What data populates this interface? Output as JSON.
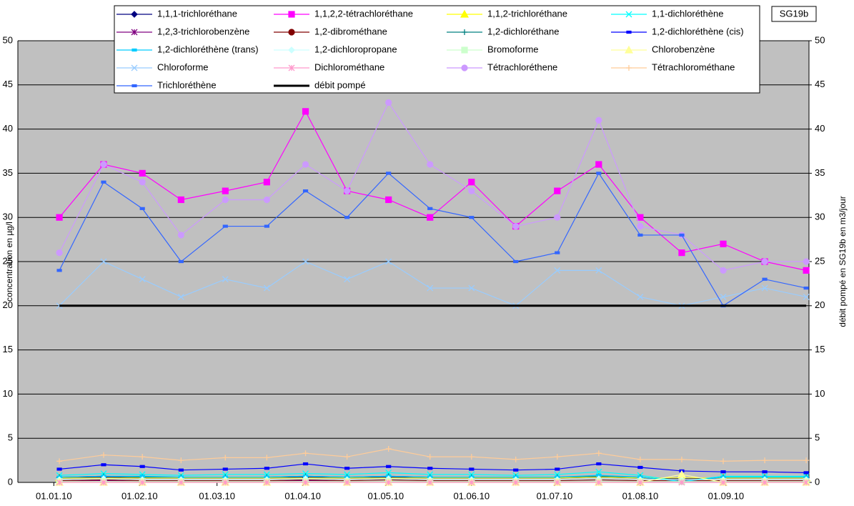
{
  "chart_data": {
    "type": "line",
    "title": "SG19b",
    "y_label": "concentration en µg/l",
    "y2_label": "débit pompé en SG19b en m3/jour",
    "x": [
      "03.01.10",
      "19.01.10",
      "02.02.10",
      "16.02.10",
      "04.03.10",
      "19.03.10",
      "02.04.10",
      "17.04.10",
      "02.05.10",
      "17.05.10",
      "01.06.10",
      "17.06.10",
      "02.07.10",
      "17.07.10",
      "01.08.10",
      "16.08.10",
      "31.08.10",
      "15.09.10",
      "30.09.10"
    ],
    "xlim": [
      "19.12.09",
      "01.10.10"
    ],
    "xticks": [
      "01.01.10",
      "01.02.10",
      "01.03.10",
      "01.04.10",
      "01.05.10",
      "01.06.10",
      "01.07.10",
      "01.08.10",
      "01.09.10"
    ],
    "ylim": [
      0,
      50
    ],
    "yticks": [
      0,
      5,
      10,
      15,
      20,
      25,
      30,
      35,
      40,
      45,
      50
    ],
    "y2lim": [
      0,
      50
    ],
    "y2ticks": [
      0,
      5,
      10,
      15,
      20,
      25,
      30,
      35,
      40,
      45,
      50
    ],
    "grid": true,
    "background": "#c0c0c0",
    "series": [
      {
        "name": "1,1,1-trichloréthane",
        "color": "#000080",
        "marker": "diamond",
        "values": [
          0.5,
          0.6,
          0.5,
          0.5,
          0.5,
          0.5,
          0.6,
          0.5,
          0.6,
          0.5,
          0.5,
          0.5,
          0.5,
          0.6,
          0.5,
          0.4,
          0.5,
          0.5,
          0.5
        ]
      },
      {
        "name": "1,1,2,2-tétrachloréthane",
        "color": "#ff00ff",
        "marker": "square",
        "values": [
          30,
          36,
          35,
          32,
          33,
          34,
          42,
          33,
          32,
          30,
          34,
          29,
          33,
          36,
          30,
          26,
          27,
          25,
          24
        ]
      },
      {
        "name": "1,1,2-trichloréthane",
        "color": "#ffff00",
        "marker": "triangle",
        "values": [
          0.5,
          0.5,
          0.5,
          0.5,
          0.5,
          0.5,
          0.5,
          0.5,
          0.5,
          0.5,
          0.5,
          0.5,
          0.5,
          0.6,
          0.5,
          0.5,
          0.5,
          0.5,
          0.5
        ]
      },
      {
        "name": "1,1-dichloréthène",
        "color": "#00ffff",
        "marker": "x",
        "values": [
          0.8,
          1.0,
          0.9,
          0.8,
          0.9,
          0.9,
          1.0,
          0.9,
          1.1,
          0.9,
          0.9,
          0.8,
          0.9,
          1.2,
          0.8,
          0.1,
          0.7,
          0.7,
          0.7
        ]
      },
      {
        "name": "1,2,3-trichlorobenzène",
        "color": "#800080",
        "marker": "star",
        "values": [
          0.1,
          0.2,
          0.1,
          0.1,
          0.1,
          0.1,
          0.2,
          0.1,
          0.1,
          0.1,
          0.1,
          0.1,
          0.1,
          0.1,
          0.1,
          0.1,
          0.1,
          0.1,
          0.1
        ]
      },
      {
        "name": "1,2-dibrométhane",
        "color": "#800000",
        "marker": "circle",
        "values": [
          0.2,
          0.3,
          0.2,
          0.2,
          0.2,
          0.2,
          0.3,
          0.2,
          0.3,
          0.2,
          0.2,
          0.2,
          0.2,
          0.3,
          0.2,
          0.2,
          0.2,
          0.2,
          0.2
        ]
      },
      {
        "name": "1,2-dichloréthane",
        "color": "#008080",
        "marker": "plus",
        "values": [
          0.6,
          0.7,
          0.6,
          0.6,
          0.6,
          0.6,
          0.7,
          0.6,
          0.7,
          0.6,
          0.6,
          0.6,
          0.6,
          0.7,
          0.6,
          0.1,
          0.6,
          0.6,
          0.6
        ]
      },
      {
        "name": "1,2-dichloréthène (cis)",
        "color": "#0000ff",
        "marker": "dash",
        "values": [
          1.5,
          2.0,
          1.8,
          1.4,
          1.5,
          1.6,
          2.1,
          1.6,
          1.8,
          1.6,
          1.5,
          1.4,
          1.5,
          2.1,
          1.7,
          1.3,
          1.2,
          1.2,
          1.1
        ]
      },
      {
        "name": "1,2-dichloréthène (trans)",
        "color": "#00ccff",
        "marker": "dash",
        "values": [
          0.6,
          0.7,
          0.7,
          0.6,
          0.6,
          0.6,
          0.7,
          0.6,
          0.7,
          0.6,
          0.6,
          0.6,
          0.6,
          0.8,
          0.6,
          0.1,
          0.6,
          0.6,
          0.6
        ]
      },
      {
        "name": "1,2-dichloropropane",
        "color": "#ccffff",
        "marker": "diamond",
        "values": [
          0.3,
          0.4,
          0.3,
          0.3,
          0.3,
          0.3,
          0.4,
          0.3,
          0.4,
          0.3,
          0.3,
          0.3,
          0.3,
          0.4,
          0.3,
          0.3,
          0.3,
          0.3,
          0.3
        ]
      },
      {
        "name": "Bromoforme",
        "color": "#ccffcc",
        "marker": "square",
        "values": [
          0.1,
          0.1,
          0.1,
          0.1,
          0.1,
          0.1,
          0.1,
          0.1,
          0.1,
          0.1,
          0.1,
          0.1,
          0.1,
          0.1,
          0.1,
          0.1,
          0.1,
          0.1,
          0.1
        ]
      },
      {
        "name": "Chlorobenzène",
        "color": "#ffff99",
        "marker": "triangle",
        "values": [
          0,
          0,
          0,
          0,
          0,
          0,
          0,
          0,
          0,
          0,
          0,
          0,
          0,
          0,
          0,
          0.9,
          0,
          0,
          0
        ]
      },
      {
        "name": "Chloroforme",
        "color": "#99ccff",
        "marker": "x",
        "values": [
          20,
          25,
          23,
          21,
          23,
          22,
          25,
          23,
          25,
          22,
          22,
          20,
          24,
          24,
          21,
          20,
          21,
          22,
          21
        ]
      },
      {
        "name": "Dichlorométhane",
        "color": "#ff99cc",
        "marker": "star",
        "values": [
          0,
          0,
          0,
          0,
          0,
          0,
          0,
          0,
          0,
          0,
          0,
          0,
          0,
          0,
          0,
          0,
          0,
          0,
          0
        ]
      },
      {
        "name": "Tétrachloréthene",
        "color": "#cc99ff",
        "marker": "circle",
        "values": [
          26,
          36,
          34,
          28,
          32,
          32,
          36,
          33,
          43,
          36,
          33,
          29,
          30,
          41,
          29,
          28,
          24,
          25,
          25
        ]
      },
      {
        "name": "Tétrachlorométhane",
        "color": "#ffcc99",
        "marker": "plus",
        "values": [
          2.4,
          3.1,
          2.9,
          2.5,
          2.8,
          2.8,
          3.3,
          2.9,
          3.8,
          2.9,
          2.9,
          2.6,
          2.9,
          3.3,
          2.6,
          2.6,
          2.4,
          2.5,
          2.5
        ]
      },
      {
        "name": "Trichloréthène",
        "color": "#3366ff",
        "marker": "dash",
        "values": [
          24,
          34,
          31,
          25,
          29,
          29,
          33,
          30,
          35,
          31,
          30,
          25,
          26,
          35,
          28,
          28,
          20,
          23,
          22
        ]
      },
      {
        "name": "débit pompé",
        "color": "#000000",
        "marker": "none",
        "width": 3,
        "axis": "y2",
        "values": [
          20,
          20,
          20,
          20,
          20,
          20,
          20,
          20,
          20,
          20,
          20,
          20,
          20,
          20,
          20,
          20,
          20,
          20,
          20
        ]
      }
    ]
  }
}
